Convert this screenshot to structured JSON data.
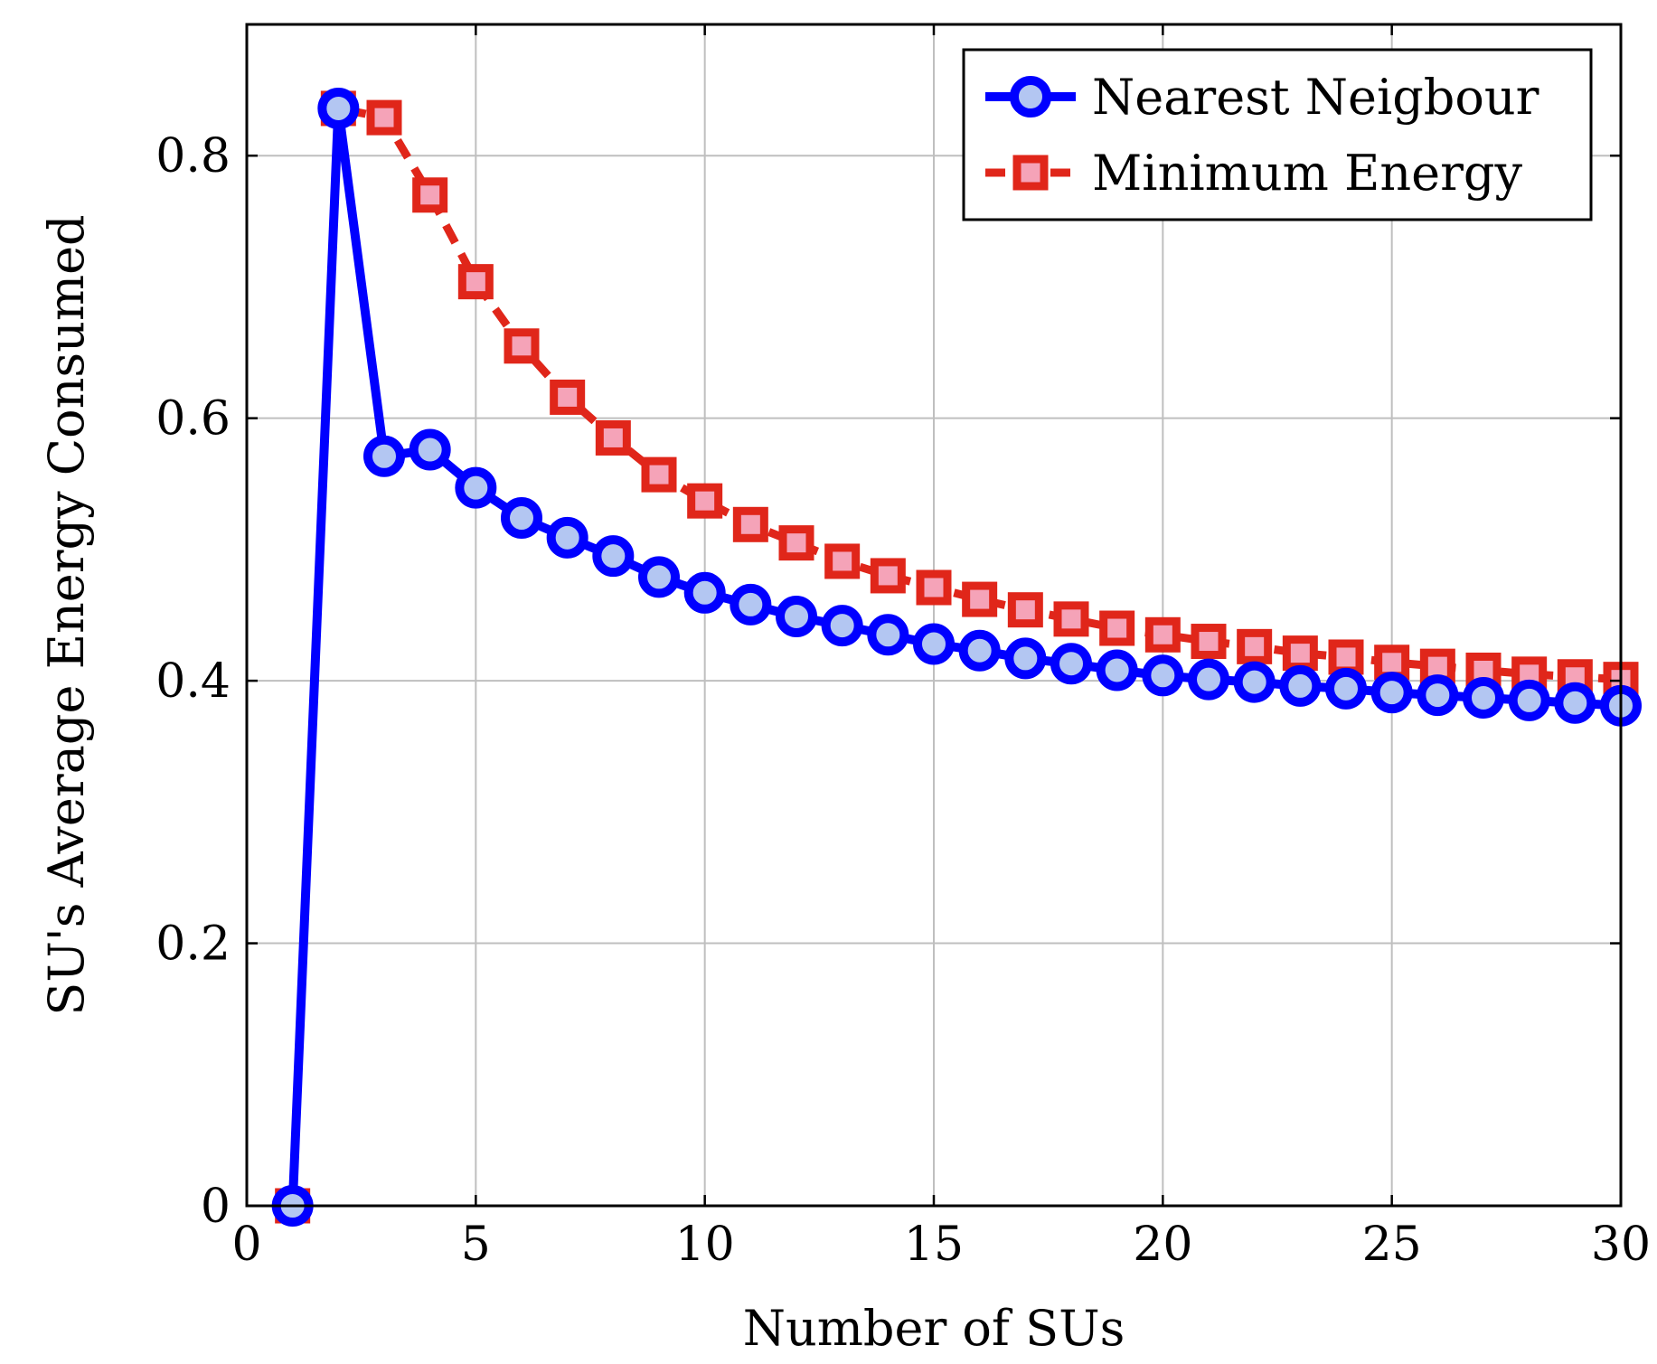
{
  "chart_data": {
    "type": "line",
    "title": "",
    "xlabel": "Number of SUs",
    "ylabel": "SU's Average Energy Consumed",
    "xlim": [
      0,
      30
    ],
    "ylim": [
      0,
      0.9
    ],
    "xticks": [
      0,
      5,
      10,
      15,
      20,
      25,
      30
    ],
    "yticks": [
      0,
      0.2,
      0.4,
      0.6,
      0.8
    ],
    "xtick_labels": [
      "0",
      "5",
      "10",
      "15",
      "20",
      "25",
      "30"
    ],
    "ytick_labels": [
      "0",
      "0.2",
      "0.4",
      "0.6",
      "0.8"
    ],
    "grid": true,
    "legend_position": "top-right",
    "x": [
      1,
      2,
      3,
      4,
      5,
      6,
      7,
      8,
      9,
      10,
      11,
      12,
      13,
      14,
      15,
      16,
      17,
      18,
      19,
      20,
      21,
      22,
      23,
      24,
      25,
      26,
      27,
      28,
      29,
      30
    ],
    "series": [
      {
        "name": "Nearest Neigbour",
        "line_color": "#0000ff",
        "fill_color": "#b3c6f2",
        "marker": "circle",
        "line_style": "solid",
        "values": [
          0,
          0.836,
          0.571,
          0.576,
          0.547,
          0.524,
          0.509,
          0.495,
          0.479,
          0.467,
          0.458,
          0.449,
          0.442,
          0.435,
          0.428,
          0.423,
          0.417,
          0.413,
          0.408,
          0.404,
          0.401,
          0.399,
          0.396,
          0.394,
          0.391,
          0.389,
          0.387,
          0.385,
          0.383,
          0.381
        ]
      },
      {
        "name": "Minimum Energy",
        "line_color": "#e0261a",
        "fill_color": "#f5a3b8",
        "marker": "square",
        "line_style": "dashed",
        "values": [
          0,
          0.836,
          0.829,
          0.77,
          0.704,
          0.655,
          0.616,
          0.585,
          0.557,
          0.537,
          0.519,
          0.505,
          0.491,
          0.48,
          0.471,
          0.462,
          0.454,
          0.447,
          0.44,
          0.435,
          0.43,
          0.426,
          0.421,
          0.418,
          0.414,
          0.411,
          0.408,
          0.405,
          0.403,
          0.401
        ]
      }
    ]
  }
}
